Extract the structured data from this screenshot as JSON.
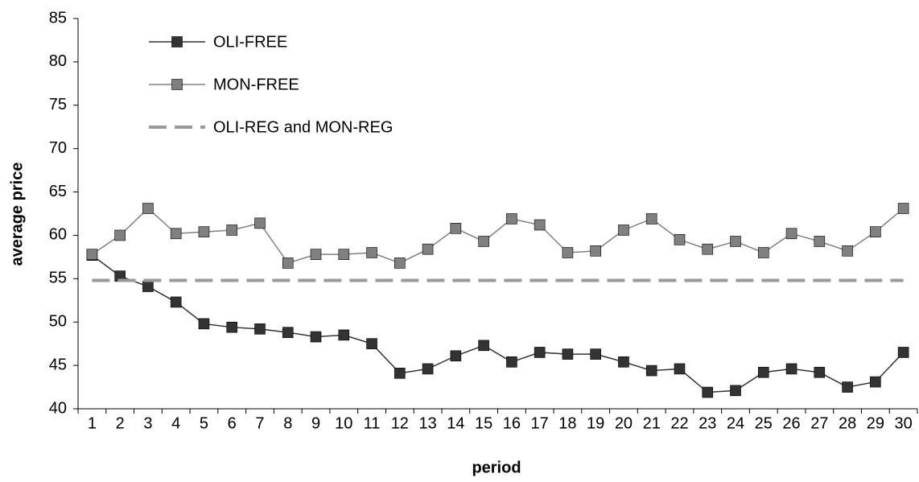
{
  "chart_data": {
    "type": "line",
    "x_label": "period",
    "y_label": "average price",
    "categories": [
      "1",
      "2",
      "3",
      "4",
      "5",
      "6",
      "7",
      "8",
      "9",
      "10",
      "11",
      "12",
      "13",
      "14",
      "15",
      "16",
      "17",
      "18",
      "19",
      "20",
      "21",
      "22",
      "23",
      "24",
      "25",
      "26",
      "27",
      "28",
      "29",
      "30"
    ],
    "series": [
      {
        "name": "OLI-FREE",
        "color": "#333333",
        "line_style": "solid",
        "marker": "square",
        "values": [
          57.7,
          55.3,
          54.1,
          52.3,
          49.8,
          49.4,
          49.2,
          48.8,
          48.3,
          48.5,
          47.5,
          44.1,
          44.6,
          46.1,
          47.3,
          45.4,
          46.5,
          46.3,
          46.3,
          45.4,
          44.4,
          44.6,
          41.9,
          42.1,
          44.2,
          44.6,
          44.2,
          42.5,
          43.1,
          46.5
        ]
      },
      {
        "name": "MON-FREE",
        "color": "#808080",
        "line_style": "solid",
        "marker": "square",
        "values": [
          57.8,
          60.0,
          63.1,
          60.2,
          60.4,
          60.6,
          61.4,
          56.8,
          57.8,
          57.8,
          58.0,
          56.8,
          58.4,
          60.8,
          59.3,
          61.9,
          61.2,
          58.0,
          58.2,
          60.6,
          61.9,
          59.5,
          58.4,
          59.3,
          58.0,
          60.2,
          59.3,
          58.2,
          60.4,
          63.1
        ]
      },
      {
        "name": "OLI-REG and MON-REG",
        "color": "#999999",
        "line_style": "dashed",
        "marker": "none",
        "values": [
          54.8,
          54.8,
          54.8,
          54.8,
          54.8,
          54.8,
          54.8,
          54.8,
          54.8,
          54.8,
          54.8,
          54.8,
          54.8,
          54.8,
          54.8,
          54.8,
          54.8,
          54.8,
          54.8,
          54.8,
          54.8,
          54.8,
          54.8,
          54.8,
          54.8,
          54.8,
          54.8,
          54.8,
          54.8,
          54.8
        ]
      }
    ],
    "ylim": [
      40,
      85
    ],
    "yticks": [
      40,
      45,
      50,
      55,
      60,
      65,
      70,
      75,
      80,
      85
    ],
    "grid": false,
    "legend": "top-left"
  }
}
